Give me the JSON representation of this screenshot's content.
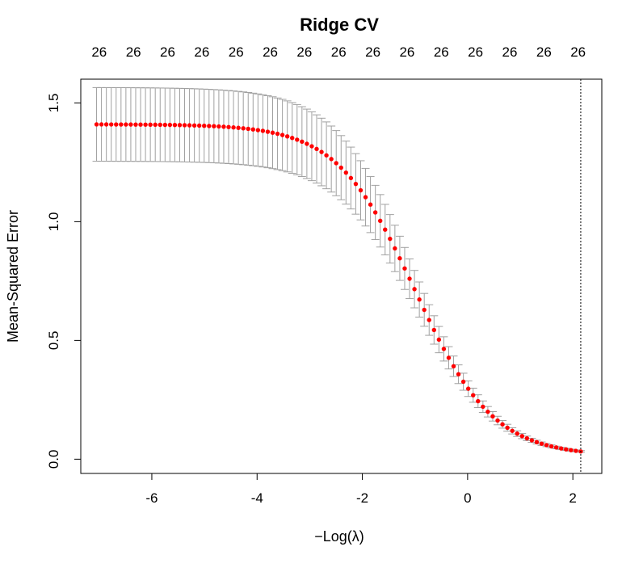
{
  "chart_data": {
    "type": "scatter",
    "title": "Ridge CV",
    "xlabel": "−Log(λ)",
    "ylabel": "Mean-Squared Error",
    "xlim": [
      -7.35,
      2.55
    ],
    "ylim": [
      -0.06,
      1.6
    ],
    "x_ticks": [
      -6,
      -4,
      -2,
      0,
      2
    ],
    "x_tick_labels": [
      "-6",
      "-4",
      "-2",
      "0",
      "2"
    ],
    "y_ticks": [
      0.0,
      0.5,
      1.0,
      1.5
    ],
    "y_tick_labels": [
      "0.0",
      "0.5",
      "1.0",
      "1.5"
    ],
    "top_axis": {
      "ticks": [
        -7.0,
        -6.35,
        -5.7,
        -5.05,
        -4.4,
        -3.75,
        -3.1,
        -2.45,
        -1.8,
        -1.15,
        -0.5,
        0.15,
        0.8,
        1.45,
        2.1
      ],
      "labels": [
        "26",
        "26",
        "26",
        "26",
        "26",
        "26",
        "26",
        "26",
        "26",
        "26",
        "26",
        "26",
        "26",
        "26",
        "26"
      ]
    },
    "vline": {
      "x": 2.15,
      "style": "dotted"
    },
    "grid": false,
    "legend": "none",
    "curve": {
      "x_start": -7.05,
      "x_end": 2.15,
      "n_points": 100,
      "mse_max": 1.41,
      "mse_min": 0.013,
      "center": -1.0,
      "slope": 1.35,
      "stderr_factor": 0.11
    },
    "colors": {
      "points": "#ff0000",
      "errorbars": "#a0a0a0",
      "axes": "#000000",
      "vline": "#000000"
    }
  }
}
